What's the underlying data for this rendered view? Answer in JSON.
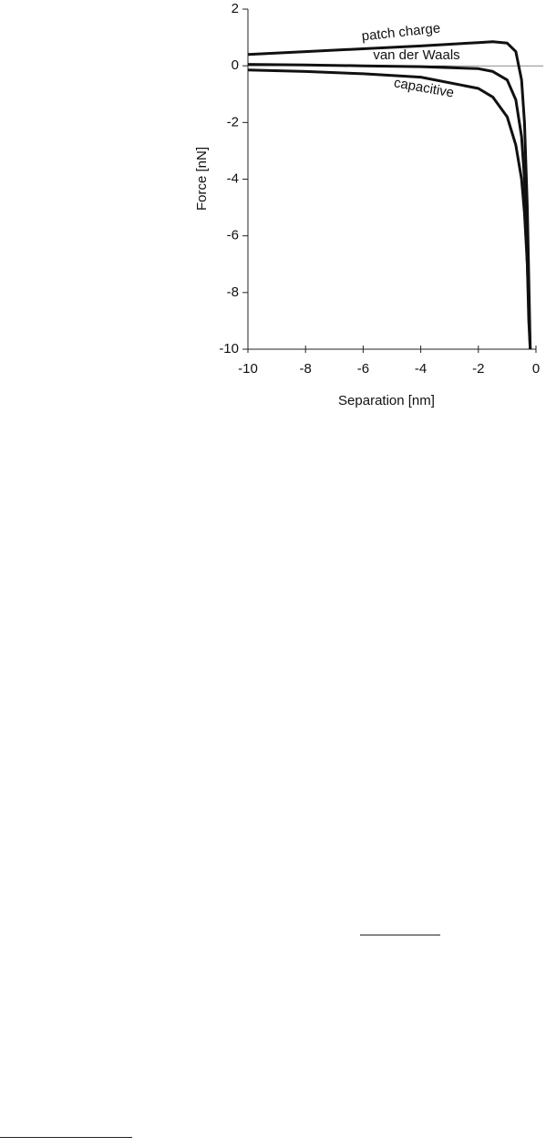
{
  "chart_data": {
    "type": "line",
    "x_label": "Separation [nm]",
    "y_label": "Force [nN]",
    "x": [
      -10,
      -8,
      -6,
      -4,
      -2,
      -1.5,
      -1,
      -0.7,
      -0.5,
      -0.4,
      -0.3,
      -0.25,
      -0.2
    ],
    "series": [
      {
        "name": "patch charge",
        "color": "#111111",
        "values": [
          0.4,
          0.5,
          0.6,
          0.7,
          0.82,
          0.85,
          0.8,
          0.5,
          -0.5,
          -2,
          -5,
          -7.5,
          -10
        ]
      },
      {
        "name": "van der Waals",
        "color": "#111111",
        "values": [
          0.05,
          0.03,
          0,
          -0.03,
          -0.1,
          -0.2,
          -0.5,
          -1.2,
          -2.5,
          -4,
          -7,
          -9,
          -10
        ]
      },
      {
        "name": "capacitive",
        "color": "#111111",
        "values": [
          -0.15,
          -0.2,
          -0.28,
          -0.4,
          -0.8,
          -1.1,
          -1.8,
          -2.8,
          -4,
          -5.2,
          -7,
          -8.5,
          -10
        ]
      }
    ],
    "xlim": [
      -10,
      0
    ],
    "xticks": [
      -10,
      -8,
      -6,
      -4,
      -2,
      0
    ],
    "ylim": [
      -10,
      2
    ],
    "yticks": [
      -10,
      -8,
      -6,
      -4,
      -2,
      0,
      2
    ],
    "zero_line": true
  }
}
